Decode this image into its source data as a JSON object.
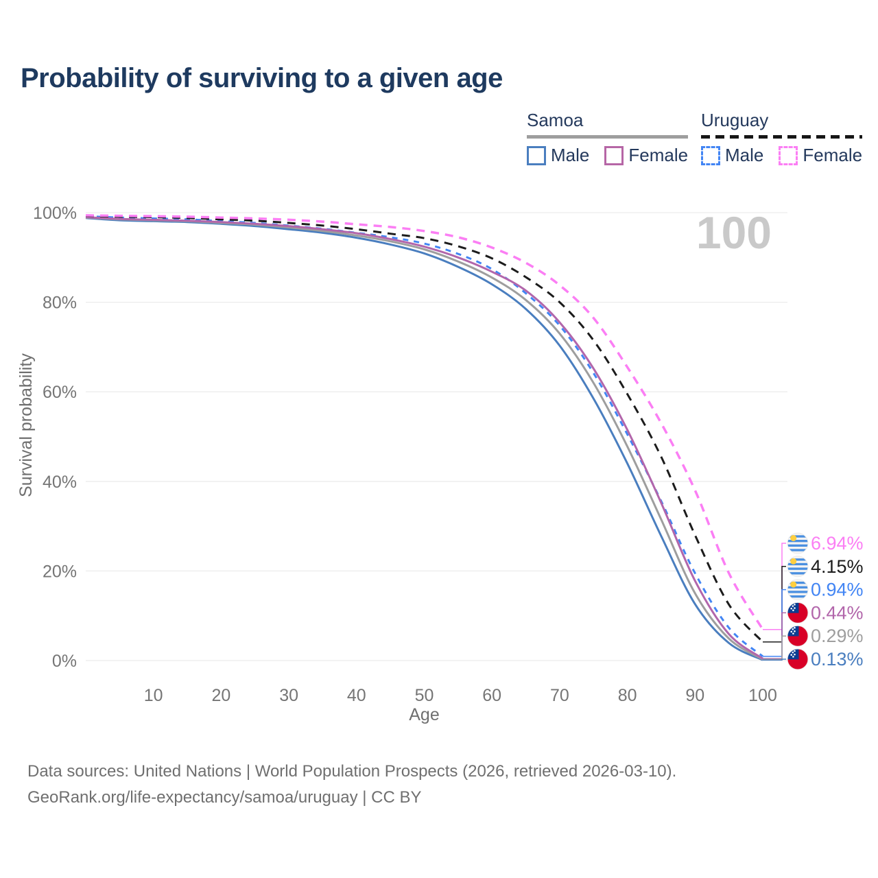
{
  "header": {
    "title": "Probability of surviving to a given age"
  },
  "legend": {
    "groups": [
      {
        "country": "Samoa",
        "line_style": "solid",
        "rule_color": "#9e9e9e",
        "items": [
          {
            "label": "Male",
            "color": "#4a7ebf",
            "dashed": false
          },
          {
            "label": "Female",
            "color": "#b666a6",
            "dashed": false
          }
        ]
      },
      {
        "country": "Uruguay",
        "line_style": "dashed",
        "rule_color": "#161616",
        "items": [
          {
            "label": "Male",
            "color": "#4285f4",
            "dashed": true
          },
          {
            "label": "Female",
            "color": "#fb7ef4",
            "dashed": true
          }
        ]
      }
    ]
  },
  "chart_data": {
    "type": "line",
    "title": "Probability of surviving to a given age",
    "xlabel": "Age",
    "ylabel": "Survival probability",
    "xlim": [
      0,
      100
    ],
    "ylim": [
      0,
      100
    ],
    "x_ticks": [
      10,
      20,
      30,
      40,
      50,
      60,
      70,
      80,
      90,
      100
    ],
    "y_ticks": [
      0,
      20,
      40,
      60,
      80,
      100
    ],
    "y_tick_suffix": "%",
    "grid": "horizontal-only",
    "legend_position": "top-right",
    "hover_age_indicator": "100",
    "ages": [
      0,
      5,
      10,
      15,
      20,
      25,
      30,
      35,
      40,
      45,
      50,
      55,
      60,
      65,
      70,
      75,
      80,
      85,
      90,
      95,
      100
    ],
    "series": [
      {
        "id": "uruguay-female",
        "name": "Uruguay Female",
        "country": "Uruguay",
        "sex": "Female",
        "line": "dashed",
        "color": "#fb7ef4",
        "width": 3.5,
        "dash": "12 9",
        "z": 6,
        "flag": "uy",
        "end_label": "6.94%",
        "end_value": 6.94,
        "values": [
          99.4,
          99.3,
          99.2,
          99.1,
          98.9,
          98.7,
          98.4,
          98.0,
          97.4,
          96.8,
          95.9,
          94.5,
          92.2,
          88.8,
          83.8,
          76.5,
          65.5,
          53.0,
          38.0,
          19.5,
          6.94
        ]
      },
      {
        "id": "uruguay-total",
        "name": "Uruguay",
        "country": "Uruguay",
        "sex": "Both",
        "line": "dashed",
        "color": "#1c1c1c",
        "width": 3,
        "dash": "12 9",
        "z": 5,
        "flag": "uy",
        "end_label": "4.15%",
        "end_value": 4.15,
        "values": [
          99.3,
          99.1,
          99.0,
          98.8,
          98.5,
          98.2,
          97.7,
          97.1,
          96.3,
          95.3,
          94.3,
          92.5,
          89.8,
          85.6,
          80.0,
          71.5,
          59.5,
          45.5,
          28.0,
          12.5,
          4.15
        ]
      },
      {
        "id": "uruguay-male",
        "name": "Uruguay Male",
        "country": "Uruguay",
        "sex": "Male",
        "line": "dashed",
        "color": "#4285f4",
        "width": 3,
        "dash": "8 8",
        "z": 3,
        "flag": "uy",
        "end_label": "0.94%",
        "end_value": 0.94,
        "values": [
          99.2,
          98.9,
          98.7,
          98.5,
          98.1,
          97.7,
          97.1,
          96.4,
          95.5,
          94.5,
          93.1,
          90.8,
          87.4,
          82.0,
          74.8,
          64.2,
          50.5,
          35.6,
          19.5,
          7.3,
          0.94
        ]
      },
      {
        "id": "samoa-female",
        "name": "Samoa Female",
        "country": "Samoa",
        "sex": "Female",
        "line": "solid",
        "color": "#b266ab",
        "width": 3,
        "dash": "",
        "z": 4,
        "flag": "ws",
        "end_label": "0.44%",
        "end_value": 0.44,
        "values": [
          99.0,
          98.6,
          98.4,
          98.2,
          97.9,
          97.5,
          97.0,
          96.3,
          95.4,
          94.1,
          92.4,
          90.0,
          86.8,
          82.6,
          75.5,
          65.2,
          51.5,
          35.2,
          17.8,
          5.9,
          0.44
        ]
      },
      {
        "id": "samoa-total",
        "name": "Samoa",
        "country": "Samoa",
        "sex": "Both",
        "line": "solid",
        "color": "#9e9e9e",
        "width": 3,
        "dash": "",
        "z": 2,
        "flag": "ws",
        "end_label": "0.29%",
        "end_value": 0.29,
        "values": [
          98.9,
          98.5,
          98.3,
          98.1,
          97.7,
          97.3,
          96.7,
          95.9,
          94.9,
          93.6,
          91.8,
          89.1,
          85.5,
          80.5,
          73.0,
          62.0,
          47.8,
          31.5,
          15.0,
          4.9,
          0.29
        ]
      },
      {
        "id": "samoa-male",
        "name": "Samoa Male",
        "country": "Samoa",
        "sex": "Male",
        "line": "solid",
        "color": "#4a7ebf",
        "width": 3,
        "dash": "",
        "z": 1,
        "flag": "ws",
        "end_label": "0.13%",
        "end_value": 0.13,
        "values": [
          98.8,
          98.3,
          98.1,
          97.9,
          97.5,
          97.0,
          96.3,
          95.5,
          94.4,
          92.9,
          90.9,
          87.9,
          84.0,
          78.5,
          70.3,
          58.5,
          44.0,
          27.8,
          12.6,
          3.9,
          0.13
        ]
      }
    ]
  },
  "footer": {
    "line1": "Data sources: United Nations | World Population Prospects (2026, retrieved 2026-03-10).",
    "line2": "GeoRank.org/life-expectancy/samoa/uruguay | CC BY"
  },
  "colors": {
    "title": "#1e3a5f",
    "axis_text": "#757575",
    "footer_text": "#6f6f6f",
    "grid": "#ececec",
    "watermark": "#c9c9c9",
    "flag_uruguay_blue": "#4a8fe0",
    "flag_uruguay_sun": "#ffcf3f",
    "flag_samoa_red": "#d80027",
    "flag_samoa_blue": "#0b3d91"
  }
}
